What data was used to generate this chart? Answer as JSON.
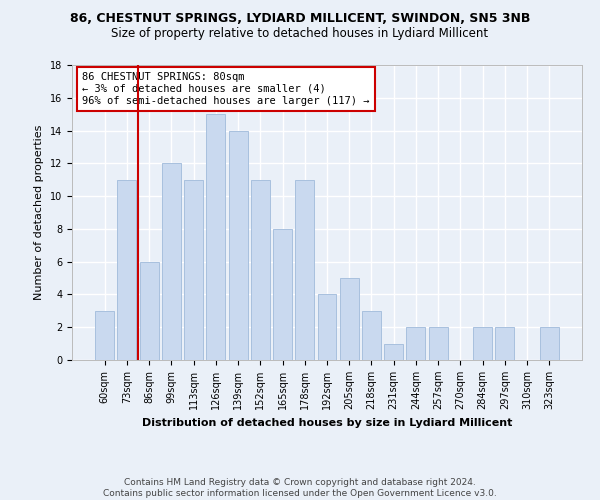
{
  "title1": "86, CHESTNUT SPRINGS, LYDIARD MILLICENT, SWINDON, SN5 3NB",
  "title2": "Size of property relative to detached houses in Lydiard Millicent",
  "xlabel": "Distribution of detached houses by size in Lydiard Millicent",
  "ylabel": "Number of detached properties",
  "categories": [
    "60sqm",
    "73sqm",
    "86sqm",
    "99sqm",
    "113sqm",
    "126sqm",
    "139sqm",
    "152sqm",
    "165sqm",
    "178sqm",
    "192sqm",
    "205sqm",
    "218sqm",
    "231sqm",
    "244sqm",
    "257sqm",
    "270sqm",
    "284sqm",
    "297sqm",
    "310sqm",
    "323sqm"
  ],
  "values": [
    3,
    11,
    6,
    12,
    11,
    15,
    14,
    11,
    8,
    11,
    4,
    5,
    3,
    1,
    2,
    2,
    0,
    2,
    2,
    0,
    2
  ],
  "bar_color": "#c9d9ef",
  "bar_edge_color": "#a8c0de",
  "vline_color": "#cc0000",
  "vline_index": 1.5,
  "annotation_text": "86 CHESTNUT SPRINGS: 80sqm\n← 3% of detached houses are smaller (4)\n96% of semi-detached houses are larger (117) →",
  "annotation_box_color": "#ffffff",
  "annotation_box_edge": "#cc0000",
  "ylim": [
    0,
    18
  ],
  "yticks": [
    0,
    2,
    4,
    6,
    8,
    10,
    12,
    14,
    16,
    18
  ],
  "footer": "Contains HM Land Registry data © Crown copyright and database right 2024.\nContains public sector information licensed under the Open Government Licence v3.0.",
  "background_color": "#eaf0f8",
  "grid_color": "#ffffff",
  "title1_fontsize": 9,
  "title2_fontsize": 8.5,
  "xlabel_fontsize": 8,
  "ylabel_fontsize": 8,
  "tick_fontsize": 7,
  "footer_fontsize": 6.5
}
